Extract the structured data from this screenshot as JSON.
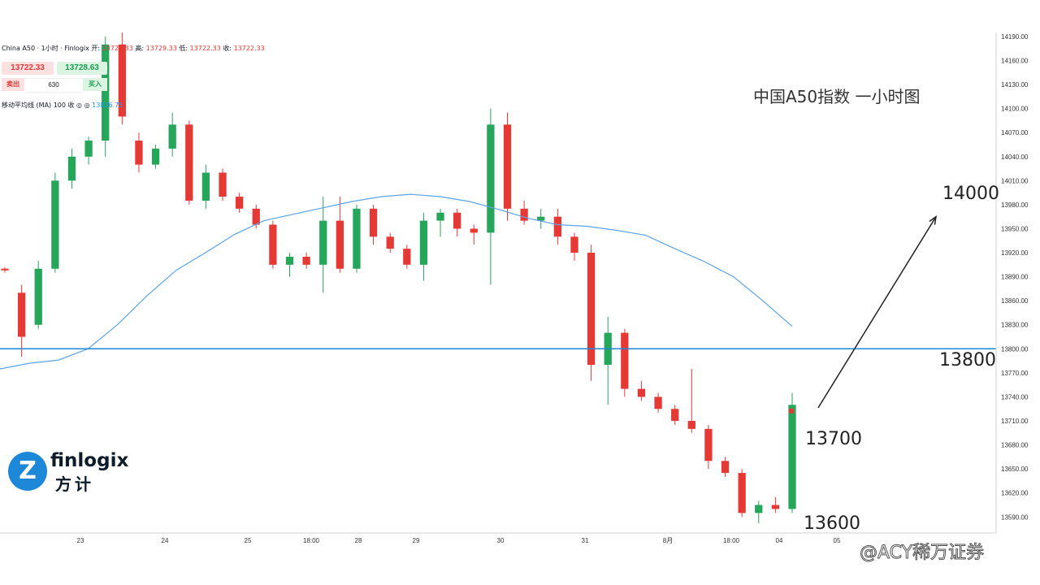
{
  "header": {
    "symbol": "China A50 · 1小时 · Finlogix",
    "open_label": "开:",
    "open": "13728.33",
    "high_label": "高:",
    "high": "13729.33",
    "low_label": "低:",
    "low": "13722.33",
    "close_label": "收:",
    "close": "13722.33"
  },
  "trade_panel": {
    "sell_price": "13722.33",
    "buy_price": "13728.63",
    "sell_label": "卖出",
    "volume": "630",
    "buy_label": "买入"
  },
  "indicator": {
    "label": "移动平均线 (MA) 100 收 ◎ ◎",
    "value": "13826.75"
  },
  "title": "中国A50指数 一小时图",
  "annotations": {
    "target": "14000",
    "level_13800": "13800",
    "level_13700": "13700",
    "level_13600": "13600"
  },
  "logo": {
    "name": "finlogix",
    "cn": "方计",
    "mark": "Z"
  },
  "watermark": "@ACY稀万证券",
  "colors": {
    "up": "#26a69a",
    "down": "#e53935",
    "ma": "#5ba4e6",
    "support": "#1e88d8",
    "arrow": "#222222"
  },
  "chart_data": {
    "type": "candlestick",
    "instrument": "China A50",
    "timeframe": "1小时",
    "ylim": [
      13570,
      14195
    ],
    "y_ticks": [
      13590,
      13620,
      13650,
      13680,
      13710,
      13740,
      13770,
      13800,
      13830,
      13860,
      13890,
      13920,
      13950,
      13980,
      14010,
      14040,
      14070,
      14100,
      14130,
      14160,
      14190
    ],
    "x_ticks": [
      "23",
      "24",
      "25",
      "18:00",
      "28",
      "29",
      "30",
      "31",
      "8月",
      "18:00",
      "04",
      "05"
    ],
    "support_level": 13800,
    "ma": {
      "name": "移动平均线 (MA) 100",
      "values": [
        13775,
        13782,
        13786,
        13800,
        13830,
        13866,
        13898,
        13920,
        13943,
        13960,
        13968,
        13976,
        13984,
        13990,
        13993,
        13990,
        13984,
        13974,
        13963,
        13955,
        13953,
        13948,
        13942,
        13925,
        13909,
        13890,
        13860,
        13828
      ]
    },
    "ohlc_sample": [
      {
        "x": 0,
        "open": 13900,
        "high": 13902,
        "low": 13895,
        "close": 13898
      },
      {
        "x": 1,
        "open": 13870,
        "high": 13880,
        "low": 13790,
        "close": 13815
      },
      {
        "x": 2,
        "open": 13830,
        "high": 13910,
        "low": 13825,
        "close": 13900
      },
      {
        "x": 3,
        "open": 13900,
        "high": 14020,
        "low": 13895,
        "close": 14010
      },
      {
        "x": 4,
        "open": 14010,
        "high": 14050,
        "low": 14000,
        "close": 14040
      },
      {
        "x": 5,
        "open": 14040,
        "high": 14065,
        "low": 14030,
        "close": 14060
      },
      {
        "x": 6,
        "open": 14060,
        "high": 14190,
        "low": 14040,
        "close": 14180
      },
      {
        "x": 7,
        "open": 14180,
        "high": 14195,
        "low": 14080,
        "close": 14090
      },
      {
        "x": 8,
        "open": 14060,
        "high": 14070,
        "low": 14020,
        "close": 14030
      },
      {
        "x": 9,
        "open": 14030,
        "high": 14055,
        "low": 14025,
        "close": 14050
      },
      {
        "x": 10,
        "open": 14050,
        "high": 14095,
        "low": 14040,
        "close": 14080
      },
      {
        "x": 11,
        "open": 14080,
        "high": 14085,
        "low": 13980,
        "close": 13985
      },
      {
        "x": 12,
        "open": 13985,
        "high": 14030,
        "low": 13975,
        "close": 14020
      },
      {
        "x": 13,
        "open": 14020,
        "high": 14025,
        "low": 13985,
        "close": 13990
      },
      {
        "x": 14,
        "open": 13990,
        "high": 13995,
        "low": 13970,
        "close": 13975
      },
      {
        "x": 15,
        "open": 13975,
        "high": 13980,
        "low": 13950,
        "close": 13955
      },
      {
        "x": 16,
        "open": 13955,
        "high": 13960,
        "low": 13900,
        "close": 13905
      },
      {
        "x": 17,
        "open": 13905,
        "high": 13920,
        "low": 13890,
        "close": 13915
      },
      {
        "x": 18,
        "open": 13915,
        "high": 13920,
        "low": 13900,
        "close": 13905
      },
      {
        "x": 19,
        "open": 13905,
        "high": 13990,
        "low": 13870,
        "close": 13960
      },
      {
        "x": 20,
        "open": 13960,
        "high": 13990,
        "low": 13895,
        "close": 13900
      },
      {
        "x": 21,
        "open": 13900,
        "high": 13980,
        "low": 13895,
        "close": 13975
      },
      {
        "x": 22,
        "open": 13975,
        "high": 13980,
        "low": 13930,
        "close": 13940
      },
      {
        "x": 23,
        "open": 13940,
        "high": 13945,
        "low": 13920,
        "close": 13925
      },
      {
        "x": 24,
        "open": 13925,
        "high": 13930,
        "low": 13900,
        "close": 13905
      },
      {
        "x": 25,
        "open": 13905,
        "high": 13970,
        "low": 13885,
        "close": 13960
      },
      {
        "x": 26,
        "open": 13960,
        "high": 13975,
        "low": 13940,
        "close": 13970
      },
      {
        "x": 27,
        "open": 13970,
        "high": 13975,
        "low": 13940,
        "close": 13950
      },
      {
        "x": 28,
        "open": 13950,
        "high": 13955,
        "low": 13930,
        "close": 13945
      },
      {
        "x": 29,
        "open": 13945,
        "high": 14100,
        "low": 13880,
        "close": 14080
      },
      {
        "x": 30,
        "open": 14080,
        "high": 14095,
        "low": 13960,
        "close": 13975
      },
      {
        "x": 31,
        "open": 13975,
        "high": 13985,
        "low": 13955,
        "close": 13960
      },
      {
        "x": 32,
        "open": 13960,
        "high": 13975,
        "low": 13950,
        "close": 13965
      },
      {
        "x": 33,
        "open": 13965,
        "high": 13975,
        "low": 13930,
        "close": 13940
      },
      {
        "x": 34,
        "open": 13940,
        "high": 13945,
        "low": 13910,
        "close": 13920
      },
      {
        "x": 35,
        "open": 13920,
        "high": 13930,
        "low": 13760,
        "close": 13780
      },
      {
        "x": 36,
        "open": 13780,
        "high": 13840,
        "low": 13730,
        "close": 13820
      },
      {
        "x": 37,
        "open": 13820,
        "high": 13825,
        "low": 13740,
        "close": 13750
      },
      {
        "x": 38,
        "open": 13750,
        "high": 13760,
        "low": 13735,
        "close": 13740
      },
      {
        "x": 39,
        "open": 13740,
        "high": 13745,
        "low": 13720,
        "close": 13725
      },
      {
        "x": 40,
        "open": 13725,
        "high": 13730,
        "low": 13705,
        "close": 13710
      },
      {
        "x": 41,
        "open": 13710,
        "high": 13775,
        "low": 13695,
        "close": 13700
      },
      {
        "x": 42,
        "open": 13700,
        "high": 13705,
        "low": 13650,
        "close": 13660
      },
      {
        "x": 43,
        "open": 13660,
        "high": 13665,
        "low": 13640,
        "close": 13645
      },
      {
        "x": 44,
        "open": 13645,
        "high": 13650,
        "low": 13590,
        "close": 13595
      },
      {
        "x": 45,
        "open": 13595,
        "high": 13610,
        "low": 13582,
        "close": 13605
      },
      {
        "x": 46,
        "open": 13605,
        "high": 13615,
        "low": 13595,
        "close": 13600
      },
      {
        "x": 47,
        "open": 13600,
        "high": 13745,
        "low": 13595,
        "close": 13730
      }
    ],
    "projection": {
      "from_price": 13700,
      "to_price": 13965
    }
  }
}
